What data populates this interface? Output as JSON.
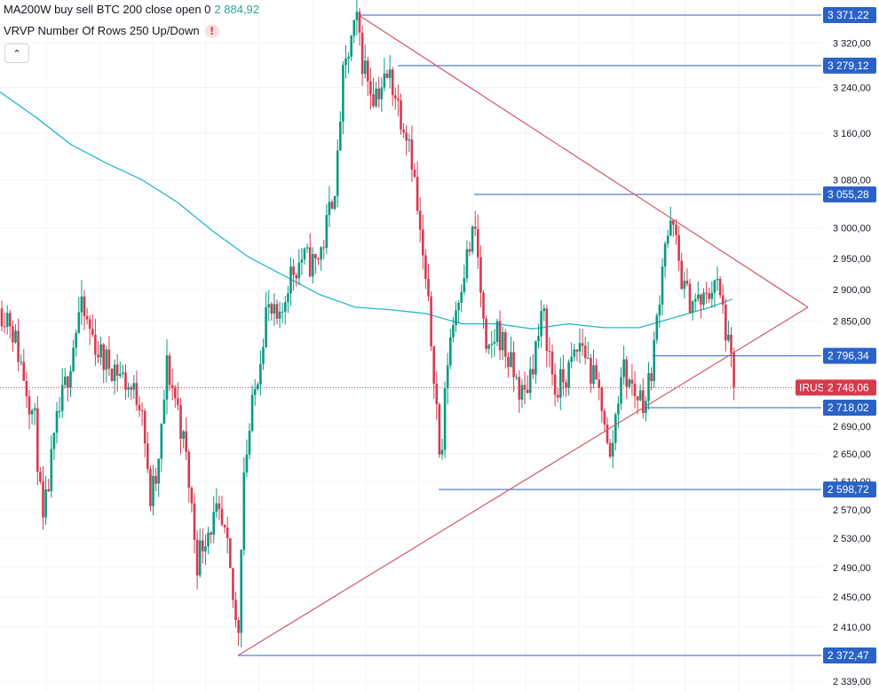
{
  "legend": {
    "ma_text": "MA200W buy sell BTC 200 close open 0",
    "ma_value": "2 884,92",
    "vrvp_text": "VRVP Number Of Rows 250 Up/Down",
    "warn_glyph": "!"
  },
  "collapse_button": "⌃",
  "colors": {
    "up": "#089981",
    "down": "#d63a4f",
    "ma": "#26b8c8",
    "level": "#2a62c6",
    "trend": "#d05a66",
    "price": "#d63a4f"
  },
  "chart_data": {
    "type": "candlestick",
    "title": "",
    "y_axis": {
      "scale": "log",
      "ticks": [
        "3 320,00",
        "3 240,00",
        "3 160,00",
        "3 080,00",
        "3 000,00",
        "2 950,00",
        "2 900,00",
        "2 850,00",
        "2 690,00",
        "2 650,00",
        "2 610,00",
        "2 570,00",
        "2 530,00",
        "2 490,00",
        "2 450,00",
        "2 410,00",
        "2 339,00"
      ],
      "tick_values": [
        3320,
        3240,
        3160,
        3080,
        3000,
        2950,
        2900,
        2850,
        2690,
        2650,
        2610,
        2570,
        2530,
        2490,
        2450,
        2410,
        2339
      ],
      "range": [
        2339,
        3440
      ]
    },
    "levels": [
      {
        "value": 3371.22,
        "label": "3 371,22"
      },
      {
        "value": 3279.12,
        "label": "3 279,12"
      },
      {
        "value": 3055.28,
        "label": "3 055,28"
      },
      {
        "value": 2796.34,
        "label": "2 796,34"
      },
      {
        "value": 2718.02,
        "label": "2 718,02"
      },
      {
        "value": 2598.72,
        "label": "2 598,72"
      },
      {
        "value": 2372.47,
        "label": "2 372,47"
      }
    ],
    "current_price": {
      "value": 2748.06,
      "label": "2 748,06",
      "symbol": "IRUS"
    },
    "moving_average": {
      "name": "MA200W",
      "value": 2884.92
    },
    "ma_points": [
      [
        0,
        3232
      ],
      [
        40,
        3188
      ],
      [
        80,
        3140
      ],
      [
        120,
        3108
      ],
      [
        160,
        3080
      ],
      [
        200,
        3042
      ],
      [
        240,
        2994
      ],
      [
        280,
        2952
      ],
      [
        320,
        2922
      ],
      [
        360,
        2892
      ],
      [
        400,
        2872
      ],
      [
        440,
        2868
      ],
      [
        480,
        2862
      ],
      [
        520,
        2846
      ],
      [
        560,
        2846
      ],
      [
        600,
        2838
      ],
      [
        640,
        2846
      ],
      [
        680,
        2840
      ],
      [
        720,
        2840
      ],
      [
        760,
        2856
      ],
      [
        800,
        2872
      ],
      [
        825,
        2884.92
      ]
    ],
    "trend_lines": [
      {
        "from": [
          404,
          3371.22
        ],
        "to": [
          910,
          2872
        ]
      },
      {
        "from": [
          268,
          2372.47
        ],
        "to": [
          910,
          2872
        ]
      }
    ],
    "candles": []
  }
}
